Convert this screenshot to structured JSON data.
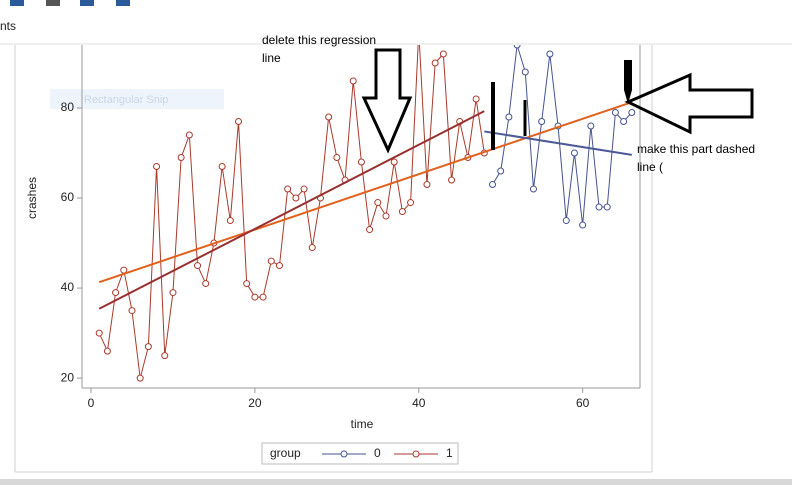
{
  "ui_texts": [
    "nts",
    "Rectangular Snip"
  ],
  "chart_data": {
    "type": "line",
    "x_label": "time",
    "y_label": "crashes",
    "xlim": [
      -1.1,
      67
    ],
    "ylim": [
      17.8,
      94
    ],
    "xticks": [
      0,
      20,
      40,
      60
    ],
    "yticks": [
      20,
      40,
      60,
      80
    ],
    "legend_title": "group",
    "series": [
      {
        "name": "0",
        "color": "#44538f",
        "x": [
          49,
          50,
          51,
          52,
          53,
          54,
          55,
          56,
          57,
          58,
          59,
          60,
          61,
          62,
          63,
          64,
          65,
          66
        ],
        "values": [
          63,
          66,
          78,
          94,
          88,
          62,
          77,
          92,
          76,
          55,
          70,
          54,
          76,
          58,
          58,
          79,
          77,
          79
        ]
      },
      {
        "name": "1",
        "color": "#a83a2c",
        "x": [
          1,
          2,
          3,
          4,
          5,
          6,
          7,
          8,
          9,
          10,
          11,
          12,
          13,
          14,
          15,
          16,
          17,
          18,
          19,
          20,
          21,
          22,
          23,
          24,
          25,
          26,
          27,
          28,
          29,
          30,
          31,
          32,
          33,
          34,
          35,
          36,
          37,
          38,
          39,
          40,
          41,
          42,
          43,
          44,
          45,
          46,
          47,
          48
        ],
        "values": [
          30,
          26,
          39,
          44,
          35,
          20,
          27,
          67,
          25,
          39,
          69,
          74,
          45,
          41,
          50,
          67,
          55,
          77,
          41,
          38,
          38,
          46,
          45,
          62,
          60,
          62,
          49,
          60,
          78,
          69,
          64,
          86,
          68,
          53,
          59,
          56,
          68,
          57,
          59,
          97,
          63,
          90,
          92,
          64,
          77,
          69,
          82,
          70
        ]
      }
    ],
    "fits": [
      {
        "color": "#e0621e",
        "x": [
          1,
          66
        ],
        "values": [
          41.3,
          81.3
        ]
      },
      {
        "color": "#993030",
        "x": [
          1,
          48
        ],
        "values": [
          35.4,
          79.3
        ]
      },
      {
        "color": "#4e5a98",
        "x": [
          48,
          66
        ],
        "values": [
          74.8,
          69.6
        ]
      }
    ],
    "annotations": [
      {
        "lines": [
          "delete this regression",
          "line"
        ]
      },
      {
        "lines": [
          "make this part dashed",
          "line  ("
        ]
      }
    ]
  }
}
